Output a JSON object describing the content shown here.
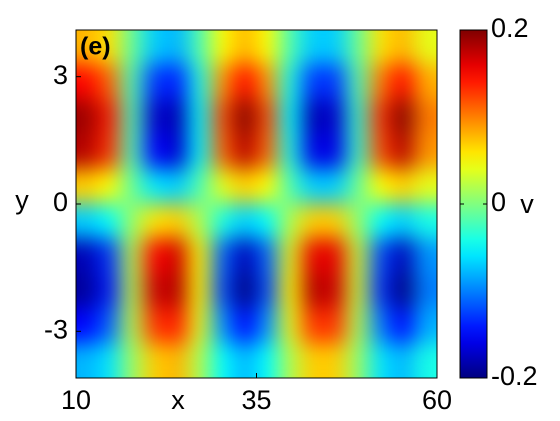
{
  "chart_data": {
    "type": "heatmap",
    "annotation": "(e)",
    "xlabel": "x",
    "ylabel": "y",
    "colormap": "jet",
    "colorbar_label": "v",
    "xlim": [
      10,
      60
    ],
    "ylim": [
      -4.1,
      4.1
    ],
    "xticks": [
      10,
      35,
      60
    ],
    "yticks": [
      -3,
      0,
      3
    ],
    "clim": [
      -0.2,
      0.2
    ],
    "cticks": [
      -0.2,
      0,
      0.2
    ],
    "z": [
      [
        0.08,
        0.06,
        -0.01,
        -0.07,
        -0.08,
        -0.02,
        0.05,
        0.08,
        0.05,
        -0.02,
        -0.07,
        -0.07,
        -0.01,
        0.06,
        0.08,
        0.04
      ],
      [
        0.15,
        0.11,
        -0.02,
        -0.13,
        -0.14,
        -0.04,
        0.09,
        0.15,
        0.09,
        -0.04,
        -0.13,
        -0.13,
        -0.02,
        0.1,
        0.15,
        0.08
      ],
      [
        0.19,
        0.14,
        -0.02,
        -0.17,
        -0.18,
        -0.05,
        0.12,
        0.2,
        0.12,
        -0.05,
        -0.18,
        -0.17,
        -0.03,
        0.13,
        0.2,
        0.1
      ],
      [
        0.18,
        0.13,
        -0.02,
        -0.15,
        -0.17,
        -0.05,
        0.11,
        0.18,
        0.11,
        -0.04,
        -0.16,
        -0.16,
        -0.03,
        0.12,
        0.18,
        0.09
      ],
      [
        0.07,
        0.05,
        -0.01,
        -0.06,
        -0.07,
        -0.02,
        0.04,
        0.07,
        0.05,
        -0.02,
        -0.07,
        -0.07,
        -0.01,
        0.05,
        0.07,
        0.04
      ],
      [
        -0.07,
        -0.05,
        0.01,
        0.06,
        0.07,
        0.02,
        -0.04,
        -0.07,
        -0.05,
        0.02,
        0.07,
        0.07,
        0.01,
        -0.05,
        -0.07,
        -0.04
      ],
      [
        -0.18,
        -0.13,
        0.02,
        0.15,
        0.17,
        0.05,
        -0.11,
        -0.18,
        -0.11,
        0.04,
        0.16,
        0.16,
        0.03,
        -0.12,
        -0.18,
        -0.09
      ],
      [
        -0.19,
        -0.14,
        0.02,
        0.17,
        0.18,
        0.05,
        -0.12,
        -0.2,
        -0.12,
        0.05,
        0.18,
        0.17,
        0.03,
        -0.13,
        -0.2,
        -0.1
      ],
      [
        -0.15,
        -0.11,
        0.02,
        0.13,
        0.14,
        0.04,
        -0.09,
        -0.15,
        -0.09,
        0.04,
        0.13,
        0.13,
        0.02,
        -0.1,
        -0.15,
        -0.08
      ],
      [
        -0.08,
        -0.06,
        0.01,
        0.07,
        0.08,
        0.02,
        -0.05,
        -0.08,
        -0.05,
        0.02,
        0.07,
        0.07,
        0.01,
        -0.06,
        -0.08,
        -0.04
      ]
    ]
  }
}
